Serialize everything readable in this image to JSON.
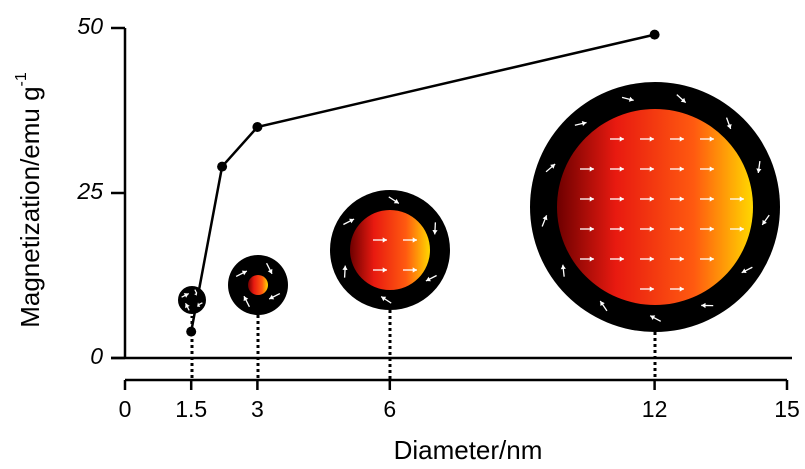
{
  "chart_data": {
    "type": "line",
    "x_label": "Diameter/nm",
    "y_label": "Magnetization/emu g",
    "y_label_sup": "-1",
    "x": [
      1.5,
      2.2,
      3,
      12
    ],
    "series": [
      {
        "color": "#000000",
        "values": [
          4,
          29,
          35,
          49
        ]
      }
    ],
    "xlim": [
      0,
      15
    ],
    "xticks": [
      0,
      1.5,
      3,
      6,
      12,
      15
    ],
    "ylim": [
      0,
      50
    ],
    "yticks": [
      0,
      25,
      50
    ]
  }
}
